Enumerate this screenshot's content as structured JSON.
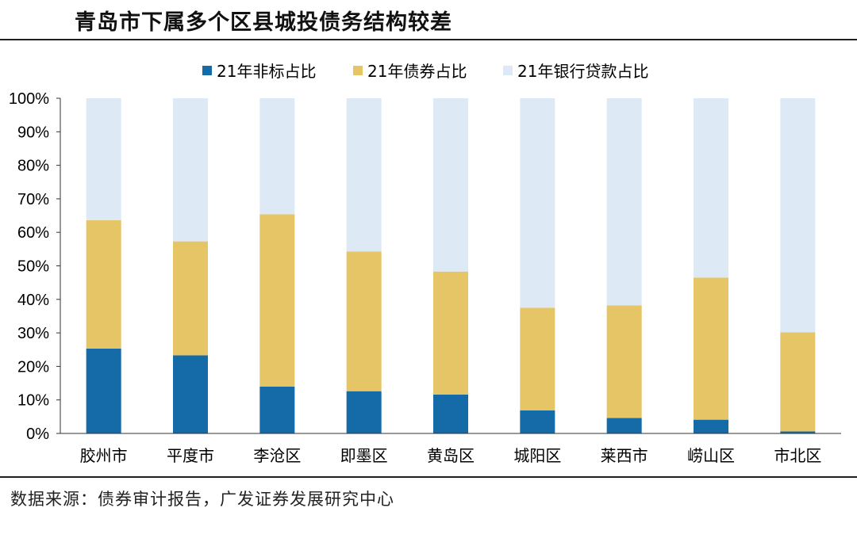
{
  "title": "青岛市下属多个区县城投债务结构较差",
  "source": "数据来源：债券审计报告，广发证券发展研究中心",
  "chart_data": {
    "type": "bar",
    "stacked": true,
    "categories": [
      "胶州市",
      "平度市",
      "李沧区",
      "即墨区",
      "黄岛区",
      "城阳区",
      "莱西市",
      "崂山区",
      "市北区"
    ],
    "series": [
      {
        "name": "21年非标占比",
        "color": "#156BA8",
        "values": [
          25.3,
          23.3,
          14.0,
          12.6,
          11.6,
          6.9,
          4.6,
          4.1,
          0.6
        ]
      },
      {
        "name": "21年债券占比",
        "color": "#E5C565",
        "values": [
          38.3,
          34.0,
          51.4,
          41.7,
          36.7,
          30.6,
          33.6,
          42.4,
          29.6
        ]
      },
      {
        "name": "21年银行贷款占比",
        "color": "#DDE9F5",
        "values": [
          36.4,
          42.7,
          34.6,
          45.7,
          51.7,
          62.5,
          61.8,
          53.5,
          69.8
        ]
      }
    ],
    "ylim": [
      0,
      100
    ],
    "y_ticks": [
      "0%",
      "10%",
      "20%",
      "30%",
      "40%",
      "50%",
      "60%",
      "70%",
      "80%",
      "90%",
      "100%"
    ],
    "xlabel": "",
    "ylabel": "",
    "grid": false,
    "legend_position": "top"
  }
}
